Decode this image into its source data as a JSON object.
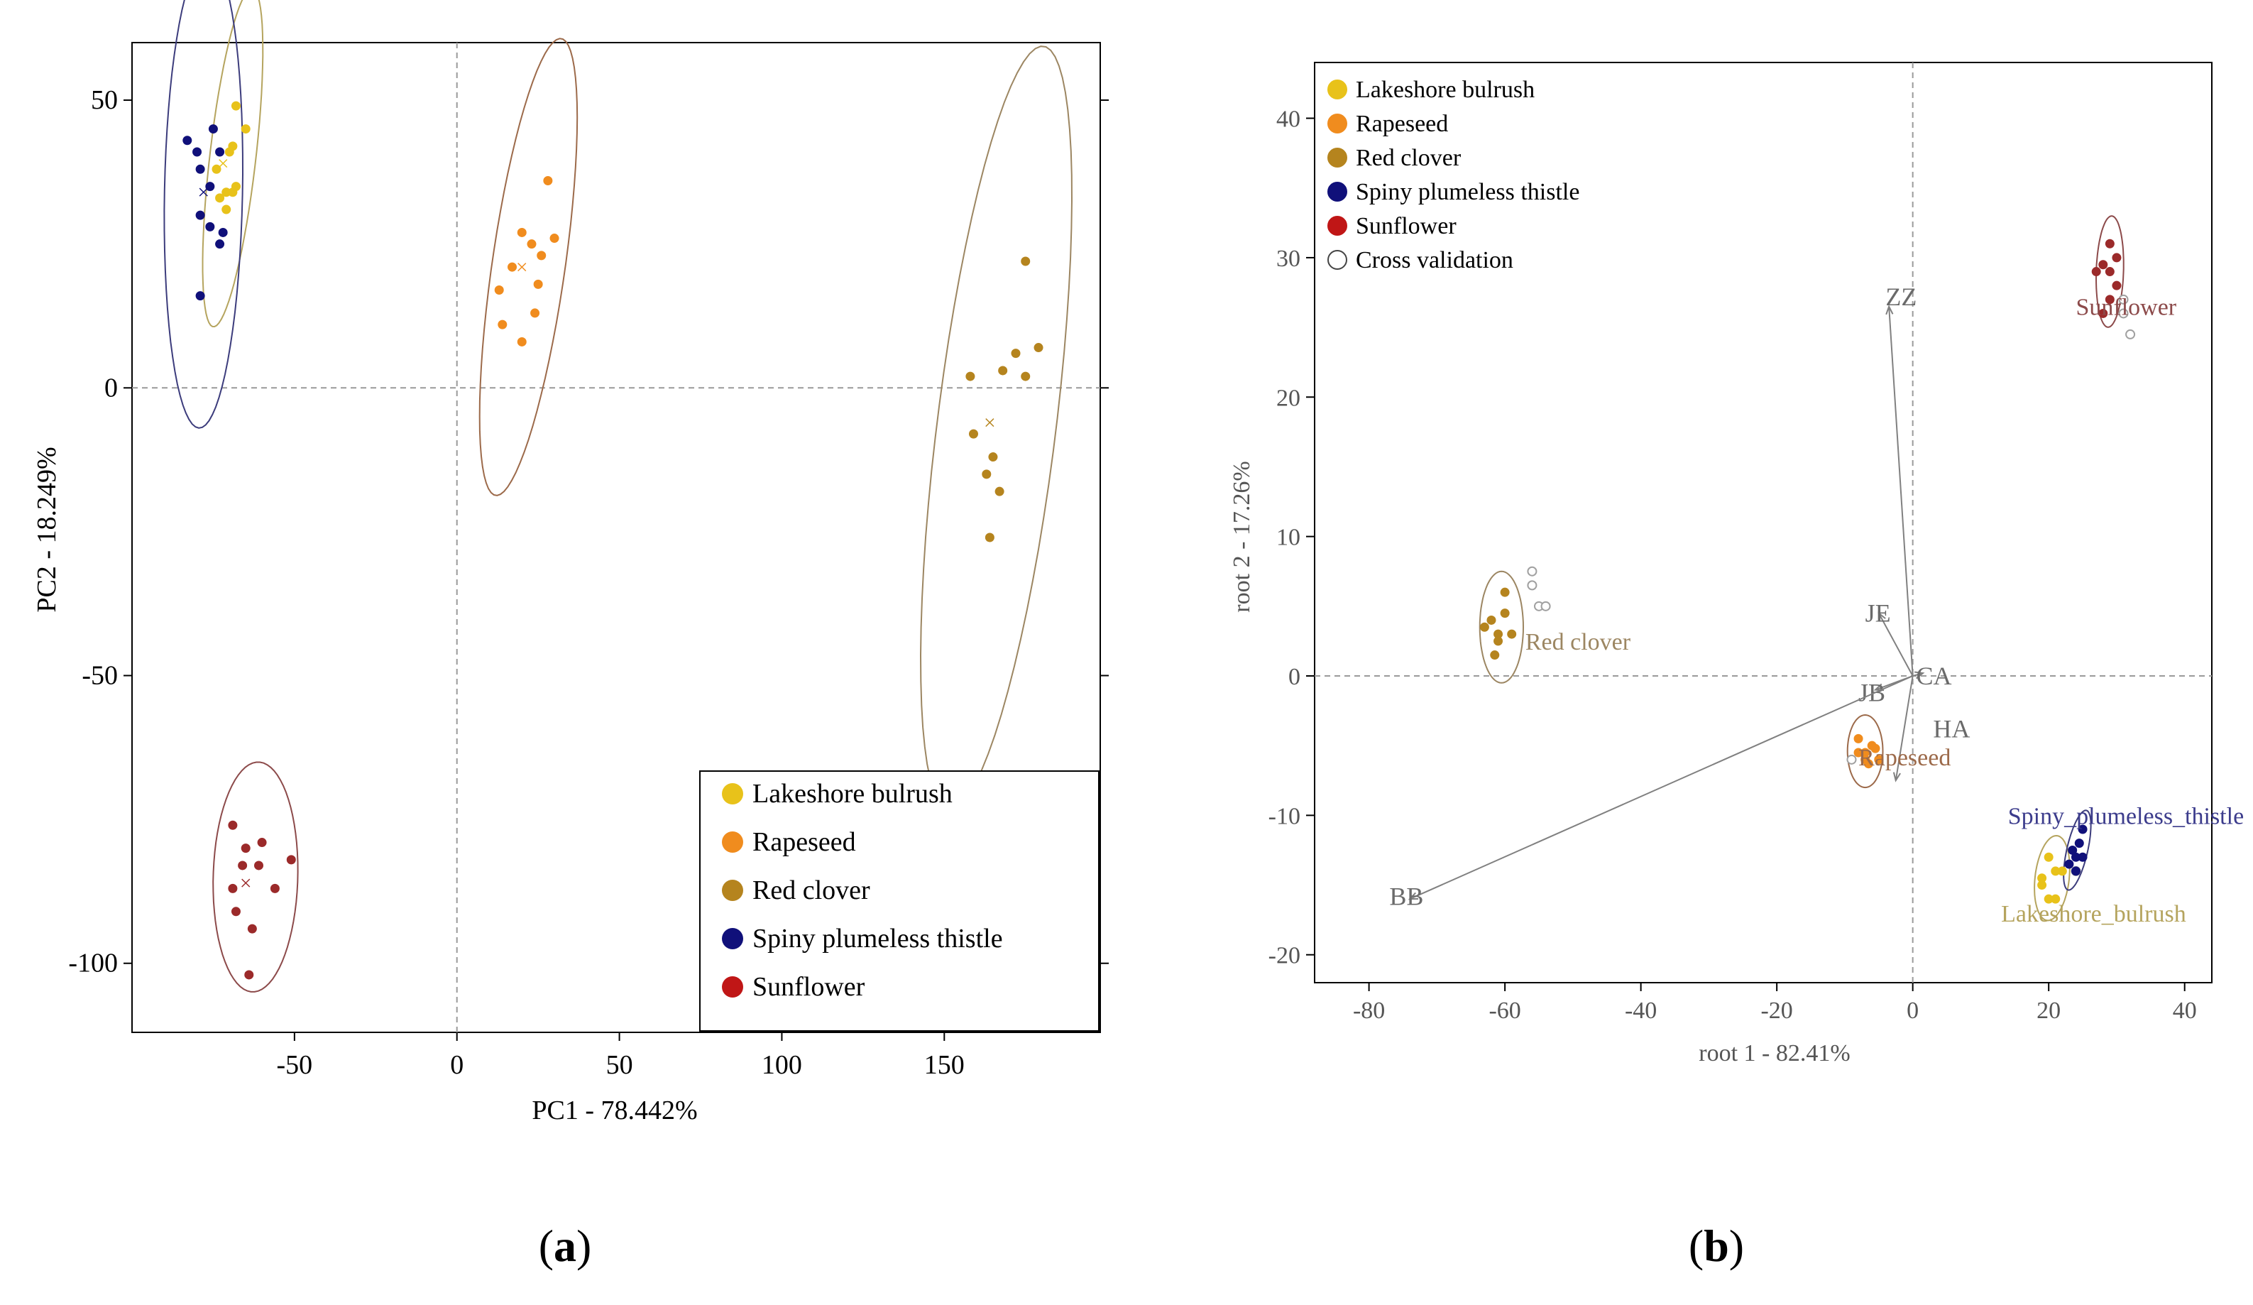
{
  "colors": {
    "lakeshore": "#e8c21a",
    "rapeseed": "#f08c1e",
    "redclover": "#b5841e",
    "spiny": "#10107a",
    "sunflower": "#9b2a2a",
    "sunflower_legend": "#c01616",
    "ell_lakeshore": "#b5a45e",
    "ell_rapeseed": "#9c6a4a",
    "ell_redclover": "#9c8662",
    "ell_spiny": "#3c3c7c",
    "ell_sunflower": "#8c4a4a",
    "axis": "#000000",
    "guide": "#9a9a9a",
    "vector": "#808080"
  },
  "panel_labels": [
    "a",
    "b"
  ],
  "chart_data": [
    {
      "type": "scatter",
      "title": "",
      "xlabel": "PC1 - 78.442%",
      "ylabel": "PC2 - 18.249%",
      "xlim": [
        -100,
        198
      ],
      "ylim": [
        -112,
        60
      ],
      "xticks": [
        -50,
        0,
        50,
        100,
        150
      ],
      "yticks": [
        50,
        0,
        -50,
        -100
      ],
      "xtick_labels": [
        "-50",
        "0",
        "50",
        "100",
        "150"
      ],
      "ytick_labels": [
        "50",
        "0",
        "-50",
        "-100"
      ],
      "reference_lines": {
        "x": 0,
        "y": 0
      },
      "legend": {
        "placement": "bottom-right",
        "entries": [
          {
            "label": "Lakeshore bulrush",
            "color_key": "lakeshore"
          },
          {
            "label": "Rapeseed",
            "color_key": "rapeseed"
          },
          {
            "label": "Red clover",
            "color_key": "redclover"
          },
          {
            "label": "Spiny plumeless thistle",
            "color_key": "spiny"
          },
          {
            "label": "Sunflower",
            "color_key": "sunflower_legend"
          }
        ]
      },
      "series": [
        {
          "name": "Lakeshore bulrush",
          "color_key": "lakeshore",
          "ellipse_color_key": "ell_lakeshore",
          "points": [
            [
              -68,
              49
            ],
            [
              -65,
              45
            ],
            [
              -69,
              42
            ],
            [
              -74,
              38
            ],
            [
              -70,
              41
            ],
            [
              -71,
              34
            ],
            [
              -69,
              34
            ],
            [
              -73,
              33
            ],
            [
              -68,
              35
            ],
            [
              -71,
              31
            ]
          ],
          "centroid": [
            -72,
            39
          ],
          "ellipse": {
            "cx": -69,
            "cy": 40,
            "rx": 30,
            "ry": 7,
            "angle": 78
          }
        },
        {
          "name": "Rapeseed",
          "color_key": "rapeseed",
          "ellipse_color_key": "ell_rapeseed",
          "points": [
            [
              28,
              36
            ],
            [
              20,
              27
            ],
            [
              23,
              25
            ],
            [
              30,
              26
            ],
            [
              26,
              23
            ],
            [
              17,
              21
            ],
            [
              13,
              17
            ],
            [
              25,
              18
            ],
            [
              24,
              13
            ],
            [
              14,
              11
            ],
            [
              20,
              8
            ]
          ],
          "centroid": [
            20,
            21
          ],
          "ellipse": {
            "cx": 22,
            "cy": 21,
            "rx": 41,
            "ry": 11,
            "angle": 75
          }
        },
        {
          "name": "Red clover",
          "color_key": "redclover",
          "ellipse_color_key": "ell_redclover",
          "points": [
            [
              175,
              22
            ],
            [
              158,
              2
            ],
            [
              168,
              3
            ],
            [
              175,
              2
            ],
            [
              172,
              6
            ],
            [
              179,
              7
            ],
            [
              159,
              -8
            ],
            [
              165,
              -12
            ],
            [
              163,
              -15
            ],
            [
              167,
              -18
            ],
            [
              164,
              -26
            ]
          ],
          "centroid": [
            164,
            -6
          ],
          "ellipse": {
            "cx": 166,
            "cy": -7,
            "rx": 68,
            "ry": 18,
            "angle": 77
          }
        },
        {
          "name": "Spiny plumeless thistle",
          "color_key": "spiny",
          "ellipse_color_key": "ell_spiny",
          "points": [
            [
              -83,
              43
            ],
            [
              -80,
              41
            ],
            [
              -75,
              45
            ],
            [
              -79,
              38
            ],
            [
              -73,
              41
            ],
            [
              -76,
              35
            ],
            [
              -79,
              30
            ],
            [
              -76,
              28
            ],
            [
              -72,
              27
            ],
            [
              -73,
              25
            ],
            [
              -79,
              16
            ]
          ],
          "centroid": [
            -78,
            34
          ],
          "ellipse": {
            "cx": -78,
            "cy": 34,
            "rx": 41,
            "ry": 12,
            "angle": 88
          }
        },
        {
          "name": "Sunflower",
          "color_key": "sunflower",
          "ellipse_color_key": "ell_sunflower",
          "points": [
            [
              -69,
              -76
            ],
            [
              -65,
              -80
            ],
            [
              -60,
              -79
            ],
            [
              -61,
              -83
            ],
            [
              -66,
              -83
            ],
            [
              -51,
              -82
            ],
            [
              -69,
              -87
            ],
            [
              -56,
              -87
            ],
            [
              -68,
              -91
            ],
            [
              -63,
              -94
            ],
            [
              -64,
              -102
            ]
          ],
          "centroid": [
            -65,
            -86
          ],
          "ellipse": {
            "cx": -62,
            "cy": -85,
            "rx": 20,
            "ry": 13,
            "angle": 86
          }
        }
      ]
    },
    {
      "type": "scatter",
      "title": "",
      "xlabel": "root 1 - 82.41%",
      "ylabel": "root 2 - 17.26%",
      "xlim": [
        -88,
        44
      ],
      "ylim": [
        -22,
        44
      ],
      "xticks": [
        -80,
        -60,
        -40,
        -20,
        0,
        20,
        40
      ],
      "yticks": [
        40,
        30,
        20,
        10,
        0,
        -10,
        -20
      ],
      "xtick_labels": [
        "-80",
        "-60",
        "-40",
        "-20",
        "0",
        "20",
        "40"
      ],
      "ytick_labels": [
        "40",
        "30",
        "20",
        "10",
        "0",
        "-10",
        "-20"
      ],
      "reference_lines": {
        "x": 0,
        "y": 0
      },
      "legend": {
        "placement": "top-left",
        "entries": [
          {
            "label": "Lakeshore bulrush",
            "color_key": "lakeshore",
            "hollow": false
          },
          {
            "label": "Rapeseed",
            "color_key": "rapeseed",
            "hollow": false
          },
          {
            "label": "Red clover",
            "color_key": "redclover",
            "hollow": false
          },
          {
            "label": "Spiny plumeless thistle",
            "color_key": "spiny",
            "hollow": false
          },
          {
            "label": "Sunflower",
            "color_key": "sunflower_legend",
            "hollow": false
          },
          {
            "label": "Cross validation",
            "color_key": "axis",
            "hollow": true
          }
        ]
      },
      "vectors": [
        {
          "label": "ZZ",
          "x": -3.5,
          "y": 26.5,
          "label_at": [
            -4,
            27.2
          ]
        },
        {
          "label": "JE",
          "x": -5,
          "y": 4.5,
          "label_at": [
            -7,
            4.5
          ]
        },
        {
          "label": "CA",
          "x": 1.5,
          "y": 0.2,
          "label_at": [
            0.5,
            0
          ]
        },
        {
          "label": "JB",
          "x": -5.5,
          "y": -1,
          "label_at": [
            -8,
            -1.2
          ]
        },
        {
          "label": "HA",
          "x": -2.5,
          "y": -7.5,
          "label_at": [
            3,
            -3.8
          ]
        },
        {
          "label": "BB",
          "x": -74,
          "y": -16,
          "label_at": [
            -77,
            -15.8
          ]
        }
      ],
      "series": [
        {
          "name": "Lakeshore bulrush",
          "color_key": "lakeshore",
          "ellipse_color_key": "ell_lakeshore",
          "label": "Lakeshore_bulrush",
          "label_at": [
            13,
            -17
          ],
          "points": [
            [
              20,
              -13
            ],
            [
              21,
              -14
            ],
            [
              19,
              -15
            ],
            [
              20,
              -16
            ],
            [
              22,
              -14
            ],
            [
              19,
              -14.5
            ],
            [
              21,
              -16
            ]
          ],
          "cv_points": [
            [
              24,
              -14
            ]
          ],
          "ellipse": {
            "cx": 20.5,
            "cy": -14.5,
            "rx": 3.2,
            "ry": 2.4,
            "angle": 62
          }
        },
        {
          "name": "Rapeseed",
          "color_key": "rapeseed",
          "ellipse_color_key": "ell_rapeseed",
          "label": "Rapeseed",
          "label_at": [
            -8,
            -5.8
          ],
          "points": [
            [
              -8,
              -4.5
            ],
            [
              -7,
              -5.5
            ],
            [
              -6,
              -5
            ],
            [
              -5,
              -6
            ],
            [
              -7,
              -6
            ],
            [
              -8,
              -5.5
            ],
            [
              -6.5,
              -6.3
            ],
            [
              -5.5,
              -5.2
            ]
          ],
          "cv_points": [
            [
              -9,
              -6
            ]
          ],
          "ellipse": {
            "cx": -7,
            "cy": -5.4,
            "rx": 2.6,
            "ry": 2.6,
            "angle": 0
          }
        },
        {
          "name": "Red clover",
          "color_key": "redclover",
          "ellipse_color_key": "ell_redclover",
          "label": "Red clover",
          "label_at": [
            -57,
            2.5
          ],
          "points": [
            [
              -60,
              6
            ],
            [
              -60,
              4.5
            ],
            [
              -62,
              4
            ],
            [
              -63,
              3.5
            ],
            [
              -61,
              3
            ],
            [
              -59,
              3
            ],
            [
              -61.5,
              1.5
            ],
            [
              -61,
              2.5
            ]
          ],
          "cv_points": [
            [
              -56,
              7.5
            ],
            [
              -56,
              6.5
            ],
            [
              -55,
              5
            ],
            [
              -54,
              5
            ]
          ],
          "ellipse": {
            "cx": -60.5,
            "cy": 3.5,
            "rx": 3.2,
            "ry": 4,
            "angle": 0
          }
        },
        {
          "name": "Spiny plumeless thistle",
          "color_key": "spiny",
          "ellipse_color_key": "ell_spiny",
          "label": "Spiny_plumeless_thistle",
          "label_at": [
            14,
            -10
          ],
          "points": [
            [
              25,
              -11
            ],
            [
              24.5,
              -12
            ],
            [
              23.5,
              -12.5
            ],
            [
              24,
              -13
            ],
            [
              23,
              -13.5
            ],
            [
              25,
              -13
            ],
            [
              24,
              -14
            ]
          ],
          "cv_points": [],
          "ellipse": {
            "cx": 24.2,
            "cy": -12.5,
            "rx": 3.2,
            "ry": 1.4,
            "angle": 60
          }
        },
        {
          "name": "Sunflower",
          "color_key": "sunflower",
          "ellipse_color_key": "ell_sunflower",
          "label": "Sunflower",
          "label_at": [
            24,
            26.5
          ],
          "points": [
            [
              29,
              31
            ],
            [
              30,
              30
            ],
            [
              28,
              29.5
            ],
            [
              29,
              29
            ],
            [
              27,
              29
            ],
            [
              30,
              28
            ],
            [
              29,
              27
            ],
            [
              28,
              26
            ]
          ],
          "cv_points": [
            [
              31,
              27
            ],
            [
              31,
              26
            ],
            [
              32,
              24.5
            ]
          ],
          "ellipse": {
            "cx": 29,
            "cy": 29,
            "rx": 4,
            "ry": 2,
            "angle": 85
          }
        }
      ]
    }
  ]
}
